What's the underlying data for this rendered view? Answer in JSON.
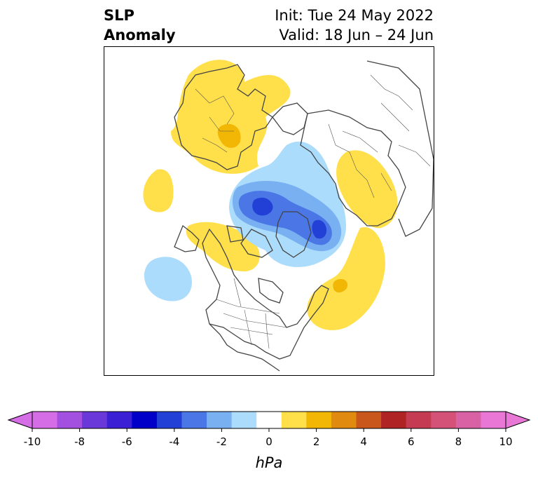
{
  "header": {
    "title_line1": "SLP",
    "title_line2": "Anomaly",
    "init_label": "Init: Tue 24 May 2022",
    "valid_label": "Valid: 18 Jun – 24 Jun"
  },
  "colorbar": {
    "unit": "hPa",
    "ticks": [
      "-10",
      "-8",
      "-6",
      "-4",
      "-2",
      "0",
      "2",
      "4",
      "6",
      "8",
      "10"
    ],
    "colors": [
      "#d56ee6",
      "#a34fdf",
      "#6a37d9",
      "#3b1fd4",
      "#0000c9",
      "#2240d6",
      "#4a76e6",
      "#78b0f2",
      "#acdcfb",
      "#ffffff",
      "#ffe04a",
      "#f2b705",
      "#e08a10",
      "#c9561a",
      "#b02325",
      "#c43b52",
      "#d45277",
      "#d962a4",
      "#e877d6"
    ]
  },
  "map": {
    "colors": {
      "land_line": "#444444",
      "pos1": "#ffe04a",
      "pos2": "#f2b705",
      "neg1": "#acdcfb",
      "neg2": "#78b0f2",
      "neg3": "#4a76e6",
      "neg4": "#2240d6"
    }
  }
}
